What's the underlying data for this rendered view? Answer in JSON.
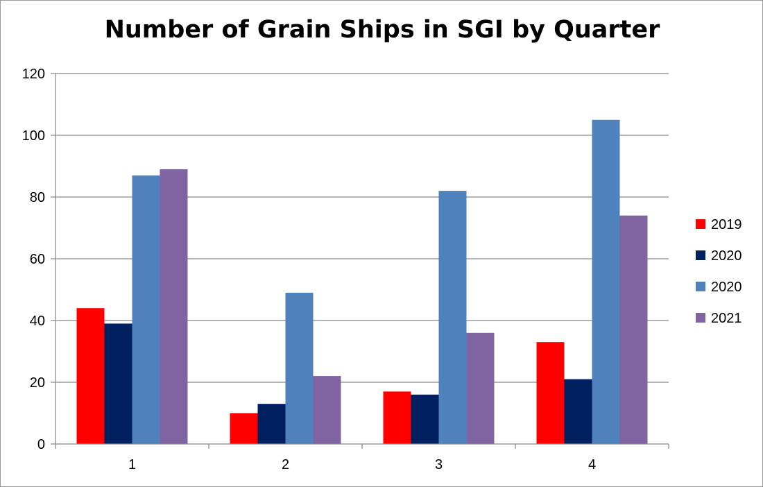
{
  "chart_data": {
    "type": "bar",
    "title": "Number of Grain Ships in SGI by Quarter",
    "xlabel": "",
    "ylabel": "",
    "categories": [
      "1",
      "2",
      "3",
      "4"
    ],
    "ylim": [
      0,
      120
    ],
    "yticks": [
      "0",
      "20",
      "40",
      "60",
      "80",
      "100",
      "120"
    ],
    "grid": true,
    "legend_position": "right",
    "series": [
      {
        "name": "2019",
        "color": "#ff0000",
        "values": [
          44,
          10,
          17,
          33
        ]
      },
      {
        "name": "2020",
        "color": "#002060",
        "values": [
          39,
          13,
          16,
          21
        ]
      },
      {
        "name": "2020",
        "color": "#4f81bd",
        "values": [
          87,
          49,
          82,
          105
        ]
      },
      {
        "name": "2021",
        "color": "#8064a2",
        "values": [
          89,
          22,
          36,
          74
        ]
      }
    ]
  }
}
